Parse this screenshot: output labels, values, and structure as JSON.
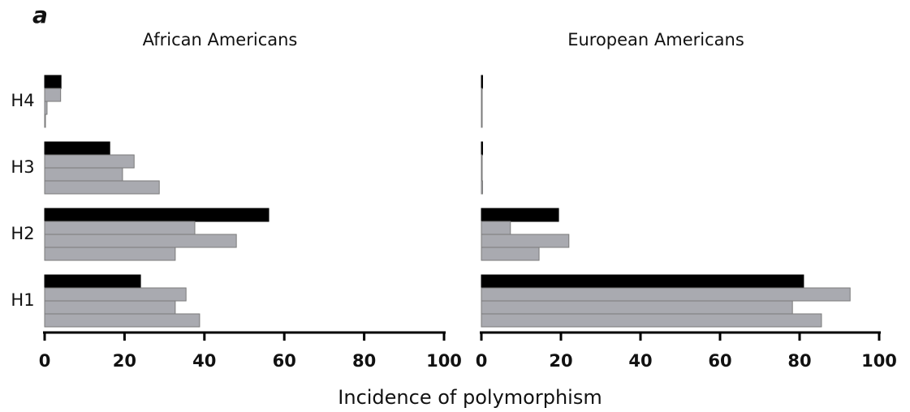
{
  "panel_label": "a",
  "xlabel": "Incidence of polymorphism",
  "chart_data": [
    {
      "type": "bar",
      "orientation": "horizontal",
      "title": "African Americans",
      "categories": [
        "H4",
        "H3",
        "H2",
        "H1"
      ],
      "series": [
        {
          "color": "#000000",
          "values": [
            4.1,
            16.3,
            56.1,
            24
          ]
        },
        {
          "color": "#a9aab0",
          "values": [
            4,
            22.4,
            37.6,
            35.4
          ]
        },
        {
          "color": "#a9aab0",
          "values": [
            0.6,
            19.5,
            48,
            32.7
          ]
        },
        {
          "color": "#a9aab0",
          "values": [
            0.2,
            28.7,
            32.7,
            38.8
          ]
        }
      ],
      "xlim": [
        0,
        100
      ],
      "xticks": [
        0,
        20,
        40,
        60,
        80,
        100
      ]
    },
    {
      "type": "bar",
      "orientation": "horizontal",
      "title": "European Americans",
      "categories": [
        null,
        null,
        null,
        null
      ],
      "series": [
        {
          "color": "#000000",
          "values": [
            0.3,
            0.3,
            19.4,
            81
          ]
        },
        {
          "color": "#a9aab0",
          "values": [
            0.1,
            0.2,
            7.3,
            92.7
          ]
        },
        {
          "color": "#a9aab0",
          "values": [
            0.1,
            0.2,
            22,
            78.2
          ]
        },
        {
          "color": "#a9aab0",
          "values": [
            0.1,
            0.3,
            14.5,
            85.5
          ]
        }
      ],
      "xlim": [
        0,
        100
      ],
      "xticks": [
        0,
        20,
        40,
        60,
        80,
        100
      ]
    }
  ]
}
